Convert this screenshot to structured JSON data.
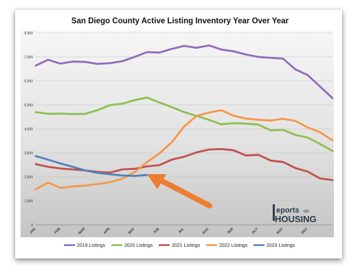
{
  "chart_data": {
    "type": "line",
    "title": "San Diego County Active Listing Inventory Year Over Year",
    "xlabel": "",
    "ylabel": "",
    "ylim": [
      0,
      8000
    ],
    "yticks": [
      "0",
      "1,000",
      "2,000",
      "3,000",
      "4,000",
      "5,000",
      "6,000",
      "7,000",
      "8,000"
    ],
    "categories": [
      "JAN",
      "FEB",
      "MAR",
      "APR",
      "MAY",
      "JUN",
      "JUL",
      "AUG",
      "SEP",
      "OCT",
      "NOV",
      "DEC"
    ],
    "grid": true,
    "legend_position": "bottom",
    "series": [
      {
        "name": "2019 Listings",
        "color": "#8e6bbd",
        "x": [
          0,
          0.5,
          1,
          1.5,
          2,
          2.5,
          3,
          3.5,
          4,
          4.5,
          5,
          5.5,
          6,
          6.5,
          7,
          7.5,
          8,
          8.5,
          9,
          9.5,
          10,
          10.5,
          11,
          11.5,
          12
        ],
        "values": [
          6640,
          6880,
          6720,
          6810,
          6790,
          6710,
          6740,
          6820,
          7000,
          7200,
          7180,
          7330,
          7460,
          7380,
          7480,
          7310,
          7230,
          7100,
          7000,
          6960,
          6930,
          6480,
          6240,
          5760,
          5280
        ]
      },
      {
        "name": "2020 Listings",
        "color": "#8cbf4f",
        "x": [
          0,
          0.5,
          1,
          1.5,
          2,
          2.5,
          3,
          3.5,
          4,
          4.5,
          5,
          5.5,
          6,
          6.5,
          7,
          7.5,
          8,
          8.5,
          9,
          9.5,
          10,
          10.5,
          11,
          11.5,
          12
        ],
        "values": [
          4700,
          4630,
          4640,
          4620,
          4630,
          4780,
          4990,
          5050,
          5200,
          5310,
          5100,
          4910,
          4700,
          4540,
          4380,
          4190,
          4240,
          4220,
          4180,
          3940,
          3960,
          3750,
          3640,
          3370,
          3080
        ]
      },
      {
        "name": "2021 Listings",
        "color": "#c0504d",
        "x": [
          0,
          0.5,
          1,
          1.5,
          2,
          2.5,
          3,
          3.5,
          4,
          4.5,
          5,
          5.5,
          6,
          6.5,
          7,
          7.5,
          8,
          8.5,
          9,
          9.5,
          10,
          10.5,
          11,
          11.5,
          12
        ],
        "values": [
          2530,
          2420,
          2350,
          2310,
          2270,
          2210,
          2180,
          2310,
          2340,
          2440,
          2490,
          2720,
          2840,
          3020,
          3140,
          3160,
          3110,
          2890,
          2920,
          2680,
          2620,
          2370,
          2220,
          1930,
          1870
        ]
      },
      {
        "name": "2022 Listings",
        "color": "#f79646",
        "x": [
          0,
          0.5,
          1,
          1.5,
          2,
          2.5,
          3,
          3.5,
          4,
          4.5,
          5,
          5.5,
          6,
          6.5,
          7,
          7.5,
          8,
          8.5,
          9,
          9.5,
          10,
          10.5,
          11,
          11.5,
          12
        ],
        "values": [
          1480,
          1770,
          1540,
          1600,
          1640,
          1700,
          1780,
          1920,
          2200,
          2620,
          2980,
          3440,
          4100,
          4540,
          4680,
          4780,
          4550,
          4430,
          4380,
          4350,
          4420,
          4330,
          4060,
          3860,
          3520
        ]
      },
      {
        "name": "2023 Listings",
        "color": "#4f81bd",
        "x": [
          0,
          0.5,
          1,
          1.5,
          2,
          2.5,
          3,
          3.5,
          4,
          4.5
        ],
        "values": [
          2870,
          2720,
          2560,
          2420,
          2270,
          2170,
          2110,
          2060,
          2040,
          2080
        ]
      }
    ]
  }
}
